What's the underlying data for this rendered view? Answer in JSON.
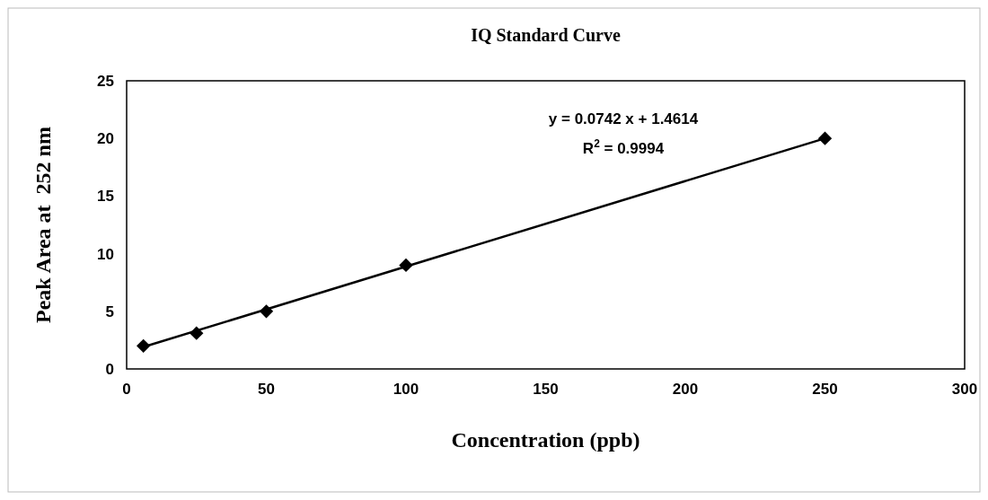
{
  "chart_data": {
    "type": "scatter",
    "title": "IQ Standard Curve",
    "xlabel": "Concentration (ppb)",
    "ylabel": "Peak Area at  252 nm",
    "series": [
      {
        "x": [
          6,
          25,
          50,
          100,
          250
        ],
        "values": [
          2.0,
          3.1,
          5.0,
          9.0,
          20.0
        ],
        "color": "#000000",
        "marker": "diamond"
      },
      {
        "type": "line",
        "x": [
          6,
          250
        ],
        "values": [
          1.91,
          20.01
        ],
        "color": "#000000",
        "marker": "none"
      }
    ],
    "xlim": [
      0,
      300
    ],
    "xticks": [
      0,
      50,
      100,
      150,
      200,
      250,
      300
    ],
    "ylim": [
      0,
      25
    ],
    "yticks": [
      0,
      5,
      10,
      15,
      20,
      25
    ],
    "grid": false,
    "annotations": [
      "y = 0.0742 x + 1.4614",
      "R$^{2}$ = 0.9994"
    ]
  }
}
